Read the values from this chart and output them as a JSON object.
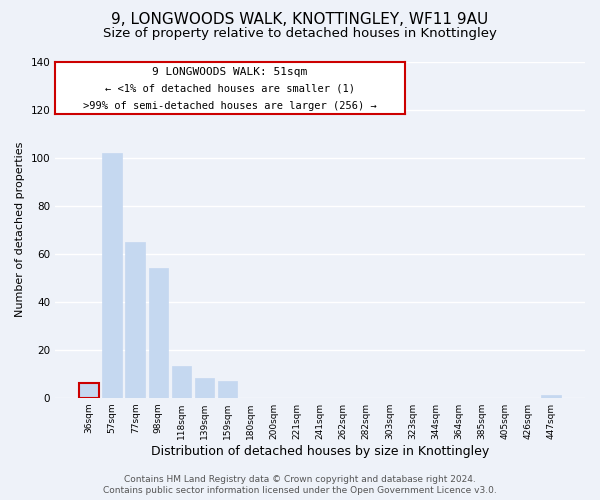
{
  "title": "9, LONGWOODS WALK, KNOTTINGLEY, WF11 9AU",
  "subtitle": "Size of property relative to detached houses in Knottingley",
  "xlabel": "Distribution of detached houses by size in Knottingley",
  "ylabel": "Number of detached properties",
  "bar_labels": [
    "36sqm",
    "57sqm",
    "77sqm",
    "98sqm",
    "118sqm",
    "139sqm",
    "159sqm",
    "180sqm",
    "200sqm",
    "221sqm",
    "241sqm",
    "262sqm",
    "282sqm",
    "303sqm",
    "323sqm",
    "344sqm",
    "364sqm",
    "385sqm",
    "405sqm",
    "426sqm",
    "447sqm"
  ],
  "bar_values": [
    6,
    102,
    65,
    54,
    13,
    8,
    7,
    0,
    0,
    0,
    0,
    0,
    0,
    0,
    0,
    0,
    0,
    0,
    0,
    0,
    1
  ],
  "bar_color": "#c5d8f0",
  "highlight_bar_index": 0,
  "highlight_outline_color": "#cc0000",
  "ylim": [
    0,
    140
  ],
  "yticks": [
    0,
    20,
    40,
    60,
    80,
    100,
    120,
    140
  ],
  "annotation_title": "9 LONGWOODS WALK: 51sqm",
  "annotation_line1": "← <1% of detached houses are smaller (1)",
  "annotation_line2": ">99% of semi-detached houses are larger (256) →",
  "annotation_box_color": "#ffffff",
  "annotation_box_edge_color": "#cc0000",
  "footer_line1": "Contains HM Land Registry data © Crown copyright and database right 2024.",
  "footer_line2": "Contains public sector information licensed under the Open Government Licence v3.0.",
  "background_color": "#eef2f9",
  "grid_color": "#ffffff",
  "title_fontsize": 11,
  "subtitle_fontsize": 9.5,
  "xlabel_fontsize": 9,
  "ylabel_fontsize": 8,
  "footer_fontsize": 6.5
}
